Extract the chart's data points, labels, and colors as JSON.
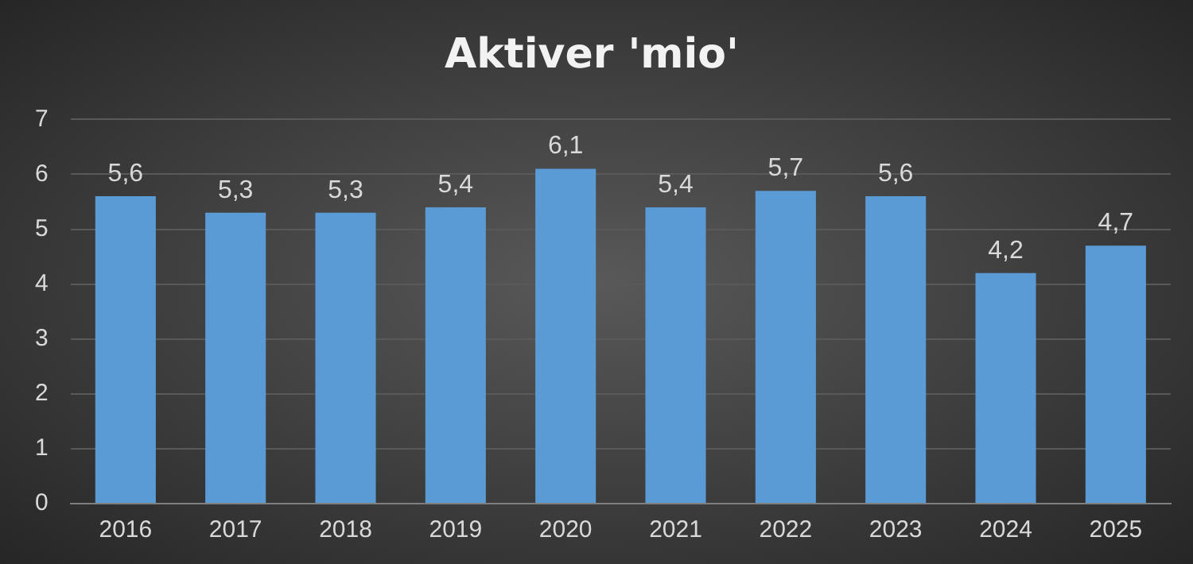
{
  "chart_data": {
    "type": "bar",
    "title": "Aktiver 'mio'",
    "categories": [
      "2016",
      "2017",
      "2018",
      "2019",
      "2020",
      "2021",
      "2022",
      "2023",
      "2024",
      "2025"
    ],
    "values": [
      5.6,
      5.3,
      5.3,
      5.4,
      6.1,
      5.4,
      5.7,
      5.6,
      4.2,
      4.7
    ],
    "value_labels": [
      "5,6",
      "5,3",
      "5,3",
      "5,4",
      "6,1",
      "5,4",
      "5,7",
      "5,6",
      "4,2",
      "4,7"
    ],
    "color": "#5b9bd5",
    "ylim": [
      0,
      7
    ],
    "yticks": [
      0,
      1,
      2,
      3,
      4,
      5,
      6,
      7
    ],
    "grid": "y",
    "legend": false
  }
}
